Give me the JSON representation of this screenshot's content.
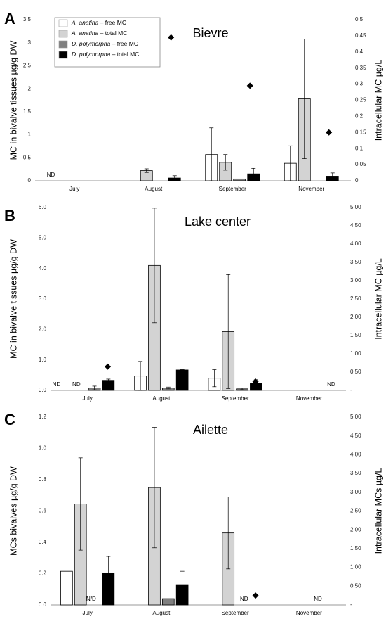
{
  "legend": [
    {
      "species": "A. anatina",
      "suffix": " – free MC",
      "fill": "#ffffff"
    },
    {
      "species": "A. anatina",
      "suffix": " – total MC",
      "fill": "#d3d3d3"
    },
    {
      "species": "D. polymorpha",
      "suffix": " – free MC",
      "fill": "#7f7f7f"
    },
    {
      "species": "D. polymorpha",
      "suffix": " – total MC",
      "fill": "#000000"
    }
  ],
  "chart_data": [
    {
      "type": "bar",
      "panel_letter": "A",
      "title": "Bievre",
      "ylabel": "MC in bivalve tissues µg/g DW",
      "y2label": "Intracellular MC µg/L",
      "categories": [
        "July",
        "August",
        "September",
        "November"
      ],
      "ylim": [
        0,
        3.5
      ],
      "yticks": [
        "0",
        "0.5",
        "1",
        "1.5",
        "2",
        "2.5",
        "3",
        "3.5"
      ],
      "y2lim": [
        0,
        0.5
      ],
      "y2ticks": [
        "0",
        "0.05",
        "0.1",
        "0.15",
        "0.2",
        "0.25",
        "0.3",
        "0.35",
        "0.4",
        "0.45",
        "0.5"
      ],
      "series": [
        {
          "name": "A. anatina – free MC",
          "values": [
            null,
            null,
            0.57,
            0.38
          ],
          "errors": [
            null,
            null,
            0.58,
            0.38
          ]
        },
        {
          "name": "A. anatina – total MC",
          "values": [
            null,
            0.22,
            0.4,
            1.78
          ],
          "errors": [
            null,
            0.04,
            0.17,
            1.3
          ]
        },
        {
          "name": "D. polymorpha – free MC",
          "values": [
            null,
            null,
            0.04,
            null
          ],
          "errors": [
            null,
            null,
            null,
            null
          ]
        },
        {
          "name": "D. polymorpha – total MC",
          "values": [
            null,
            0.06,
            0.15,
            0.1
          ],
          "errors": [
            null,
            0.05,
            0.12,
            0.07
          ]
        }
      ],
      "intracellular": {
        "axis": "right",
        "values": [
          null,
          0.445,
          0.295,
          0.15
        ]
      },
      "annotations": [
        {
          "category": 0,
          "offset": -0.3,
          "text": "ND"
        }
      ]
    },
    {
      "type": "bar",
      "panel_letter": "B",
      "title": "Lake center",
      "ylabel": "MC in bivalve tissues µg/g DW",
      "y2label": "Intracellular MC µg/L",
      "categories": [
        "July",
        "August",
        "September",
        "November"
      ],
      "ylim": [
        0,
        6
      ],
      "yticks": [
        "0.0",
        "1.0",
        "2.0",
        "3.0",
        "4.0",
        "5.0",
        "6.0"
      ],
      "y2lim": [
        0,
        5
      ],
      "y2ticks": [
        "-",
        "0.50",
        "1.00",
        "1.50",
        "2.00",
        "2.50",
        "3.00",
        "3.50",
        "4.00",
        "4.50",
        "5.00"
      ],
      "series": [
        {
          "name": "A. anatina – free MC",
          "values": [
            null,
            0.47,
            0.4,
            null
          ],
          "errors": [
            null,
            0.48,
            0.28,
            null
          ]
        },
        {
          "name": "A. anatina – total MC",
          "values": [
            null,
            4.1,
            1.93,
            null
          ],
          "errors": [
            null,
            1.88,
            1.87,
            null
          ]
        },
        {
          "name": "D. polymorpha – free MC",
          "values": [
            0.08,
            0.08,
            0.05,
            null
          ],
          "errors": [
            0.06,
            0.03,
            0.03,
            null
          ]
        },
        {
          "name": "D. polymorpha – total MC",
          "values": [
            0.33,
            0.67,
            0.23,
            null
          ],
          "errors": [
            0.04,
            0.02,
            0.12,
            null
          ]
        }
      ],
      "intracellular": {
        "axis": "right",
        "values": [
          0.65,
          0.36,
          0.24,
          null
        ]
      },
      "annotations": [
        {
          "category": 0,
          "offset": -0.42,
          "text": "ND"
        },
        {
          "category": 0,
          "offset": -0.15,
          "text": "ND"
        },
        {
          "category": 3,
          "offset": 0.3,
          "text": "ND"
        }
      ]
    },
    {
      "type": "bar",
      "panel_letter": "C",
      "title": "Ailette",
      "ylabel": "MCs bivalves µg/g DW",
      "y2label": "Intracellular MCs µg/L",
      "categories": [
        "July",
        "August",
        "September",
        "November"
      ],
      "ylim": [
        0,
        1.2
      ],
      "yticks": [
        "0.0",
        "0.2",
        "0.4",
        "0.6",
        "0.8",
        "1.0",
        "1.2"
      ],
      "y2lim": [
        0,
        5
      ],
      "y2ticks": [
        "-",
        "0.50",
        "1.00",
        "1.50",
        "2.00",
        "2.50",
        "3.00",
        "3.50",
        "4.00",
        "4.50",
        "5.00"
      ],
      "series": [
        {
          "name": "A. anatina – free MC",
          "values": [
            0.215,
            null,
            null,
            null
          ],
          "errors": [
            null,
            null,
            null,
            null
          ]
        },
        {
          "name": "A. anatina – total MC",
          "values": [
            0.645,
            0.75,
            0.46,
            null
          ],
          "errors": [
            0.295,
            0.385,
            0.23,
            null
          ]
        },
        {
          "name": "D. polymorpha – free MC",
          "values": [
            null,
            0.04,
            null,
            null
          ],
          "errors": [
            null,
            null,
            null,
            null
          ]
        },
        {
          "name": "D. polymorpha – total MC",
          "values": [
            0.205,
            0.13,
            null,
            null
          ],
          "errors": [
            0.105,
            0.085,
            null,
            null
          ]
        }
      ],
      "intracellular": {
        "axis": "right",
        "values": [
          0.25,
          0.35,
          0.25,
          null
        ]
      },
      "annotations": [
        {
          "category": 0,
          "offset": 0.05,
          "text": "N/D"
        },
        {
          "category": 2,
          "offset": 0.12,
          "text": "ND"
        },
        {
          "category": 3,
          "offset": 0.12,
          "text": "ND"
        }
      ]
    }
  ]
}
